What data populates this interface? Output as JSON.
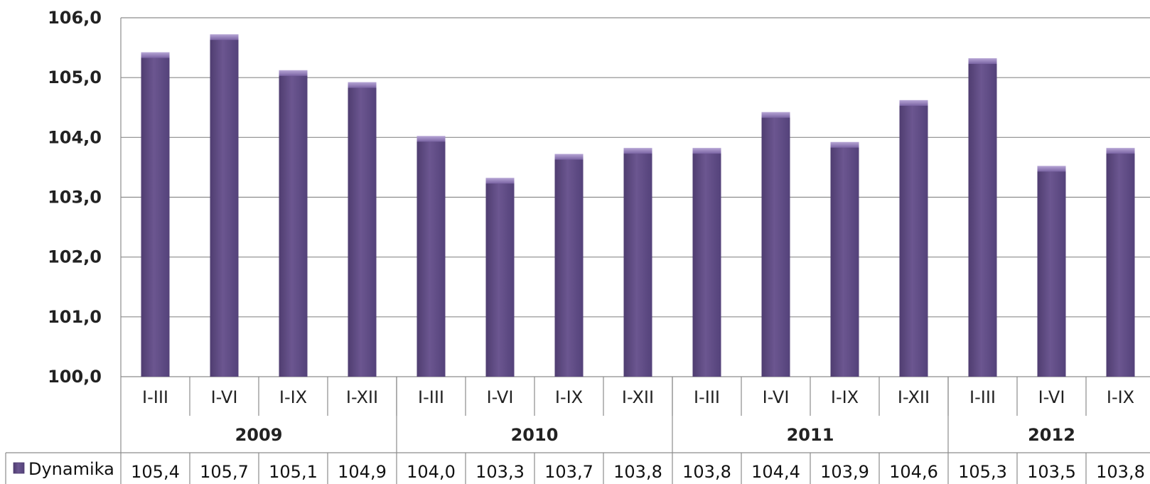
{
  "chart_data": {
    "type": "bar",
    "categories": [
      "I-III",
      "I-VI",
      "I-IX",
      "I-XII",
      "I-III",
      "I-VI",
      "I-IX",
      "I-XII",
      "I-III",
      "I-VI",
      "I-IX",
      "I-XII",
      "I-III",
      "I-VI",
      "I-IX"
    ],
    "groups": [
      {
        "label": "2009",
        "count": 4
      },
      {
        "label": "2010",
        "count": 4
      },
      {
        "label": "2011",
        "count": 4
      },
      {
        "label": "2012",
        "count": 3
      }
    ],
    "series": [
      {
        "name": "Dynamika",
        "values": [
          105.4,
          105.7,
          105.1,
          104.9,
          104.0,
          103.3,
          103.7,
          103.8,
          103.8,
          104.4,
          103.9,
          104.6,
          105.3,
          103.5,
          103.8
        ],
        "labels": [
          "105,4",
          "105,7",
          "105,1",
          "104,9",
          "104,0",
          "103,3",
          "103,7",
          "103,8",
          "103,8",
          "104,4",
          "103,9",
          "104,6",
          "105,3",
          "103,5",
          "103,8"
        ]
      }
    ],
    "ylim": [
      100,
      106
    ],
    "yticks": [
      "100,0",
      "101,0",
      "102,0",
      "103,0",
      "104,0",
      "105,0",
      "106,0"
    ],
    "grid": true,
    "color": "#66528a",
    "legend": "data-table"
  }
}
